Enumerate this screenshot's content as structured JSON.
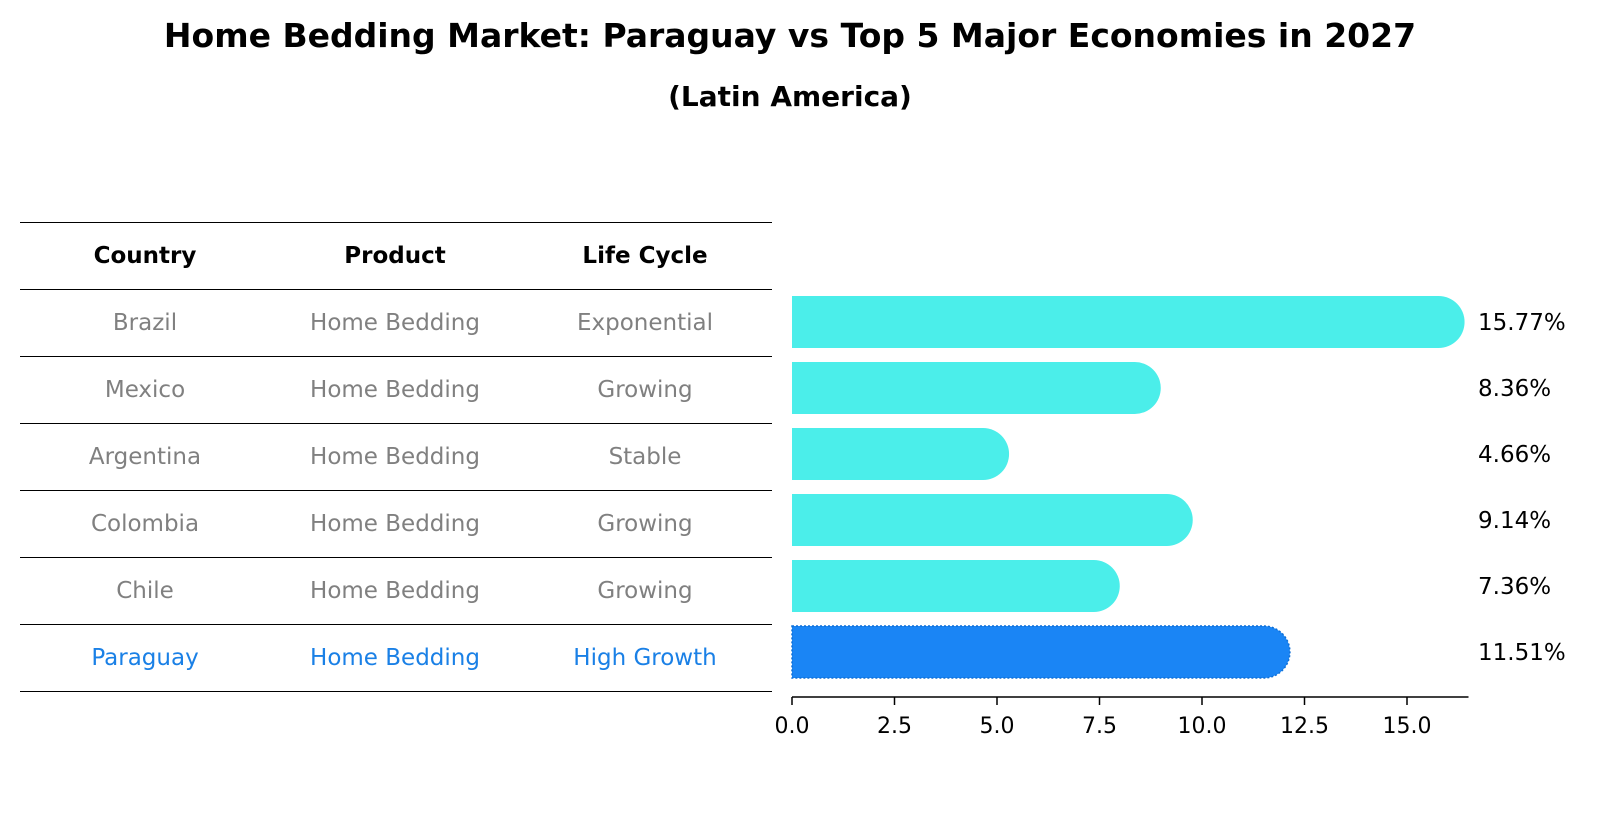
{
  "title": "Home Bedding Market: Paraguay vs Top 5 Major Economies in 2027",
  "subtitle": "(Latin America)",
  "table": {
    "headers": [
      "Country",
      "Product",
      "Life Cycle"
    ],
    "rows": [
      {
        "country": "Brazil",
        "product": "Home Bedding",
        "life_cycle": "Exponential"
      },
      {
        "country": "Mexico",
        "product": "Home Bedding",
        "life_cycle": "Growing"
      },
      {
        "country": "Argentina",
        "product": "Home Bedding",
        "life_cycle": "Stable"
      },
      {
        "country": "Colombia",
        "product": "Home Bedding",
        "life_cycle": "Growing"
      },
      {
        "country": "Chile",
        "product": "Home Bedding",
        "life_cycle": "Growing"
      },
      {
        "country": "Paraguay",
        "product": "Home Bedding",
        "life_cycle": "High Growth"
      }
    ]
  },
  "chart_data": {
    "type": "bar",
    "orientation": "horizontal",
    "categories": [
      "Brazil",
      "Mexico",
      "Argentina",
      "Colombia",
      "Chile",
      "Paraguay"
    ],
    "values": [
      15.77,
      8.36,
      4.66,
      9.14,
      7.36,
      11.51
    ],
    "value_labels": [
      "15.77%",
      "8.36%",
      "4.66%",
      "9.14%",
      "7.36%",
      "11.51%"
    ],
    "highlight": "Paraguay",
    "xlim": [
      0,
      16.5
    ],
    "xticks": [
      "0.0",
      "2.5",
      "5.0",
      "7.5",
      "10.0",
      "12.5",
      "15.0"
    ],
    "xlabel": "",
    "ylabel": "",
    "grid": false,
    "colors": {
      "bar": "#4beeea",
      "highlight": "#1a85f5",
      "highlight_text": "#1a80e6",
      "muted_text": "#808080"
    }
  }
}
